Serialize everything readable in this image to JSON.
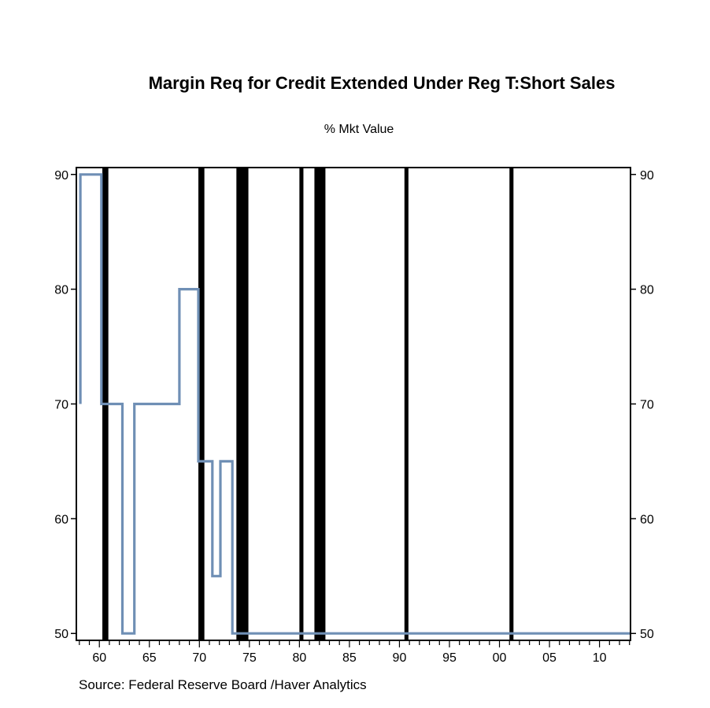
{
  "chart_data": {
    "type": "line",
    "title": "Margin Req for Credit Extended Under Reg T:Short Sales",
    "subtitle": "% Mkt Value",
    "source": "Source:  Federal Reserve Board /Haver Analytics",
    "xlim": [
      1957.7,
      2013.1
    ],
    "ylim": [
      49.4,
      90.6
    ],
    "x_ticks": [
      {
        "value": 1960,
        "label": "60"
      },
      {
        "value": 1965,
        "label": "65"
      },
      {
        "value": 1970,
        "label": "70"
      },
      {
        "value": 1975,
        "label": "75"
      },
      {
        "value": 1980,
        "label": "80"
      },
      {
        "value": 1985,
        "label": "85"
      },
      {
        "value": 1990,
        "label": "90"
      },
      {
        "value": 1995,
        "label": "95"
      },
      {
        "value": 2000,
        "label": "00"
      },
      {
        "value": 2005,
        "label": "05"
      },
      {
        "value": 2010,
        "label": "10"
      }
    ],
    "y_ticks": [
      {
        "value": 50,
        "label": "50"
      },
      {
        "value": 60,
        "label": "60"
      },
      {
        "value": 70,
        "label": "70"
      },
      {
        "value": 80,
        "label": "80"
      },
      {
        "value": 90,
        "label": "90"
      }
    ],
    "recessions": [
      {
        "start": 1960.3,
        "end": 1960.9
      },
      {
        "start": 1969.9,
        "end": 1970.5
      },
      {
        "start": 1973.7,
        "end": 1974.9
      },
      {
        "start": 1980.0,
        "end": 1980.4
      },
      {
        "start": 1981.5,
        "end": 1982.6
      },
      {
        "start": 1990.5,
        "end": 1990.9
      },
      {
        "start": 2001.0,
        "end": 2001.4
      }
    ],
    "series": [
      {
        "line_type": "step",
        "color": "#6f8fb5",
        "points": [
          [
            1958.1,
            70
          ],
          [
            1958.1,
            90
          ],
          [
            1960.2,
            90
          ],
          [
            1960.2,
            70
          ],
          [
            1962.3,
            70
          ],
          [
            1962.3,
            50
          ],
          [
            1963.5,
            50
          ],
          [
            1963.5,
            70
          ],
          [
            1968.0,
            70
          ],
          [
            1968.0,
            80
          ],
          [
            1969.9,
            80
          ],
          [
            1969.9,
            65
          ],
          [
            1971.3,
            65
          ],
          [
            1971.3,
            55
          ],
          [
            1972.1,
            55
          ],
          [
            1972.1,
            65
          ],
          [
            1973.3,
            65
          ],
          [
            1973.3,
            50
          ],
          [
            2013.1,
            50
          ]
        ]
      }
    ]
  },
  "colors": {
    "recession": "#000000",
    "axis": "#000000",
    "background": "#ffffff"
  }
}
